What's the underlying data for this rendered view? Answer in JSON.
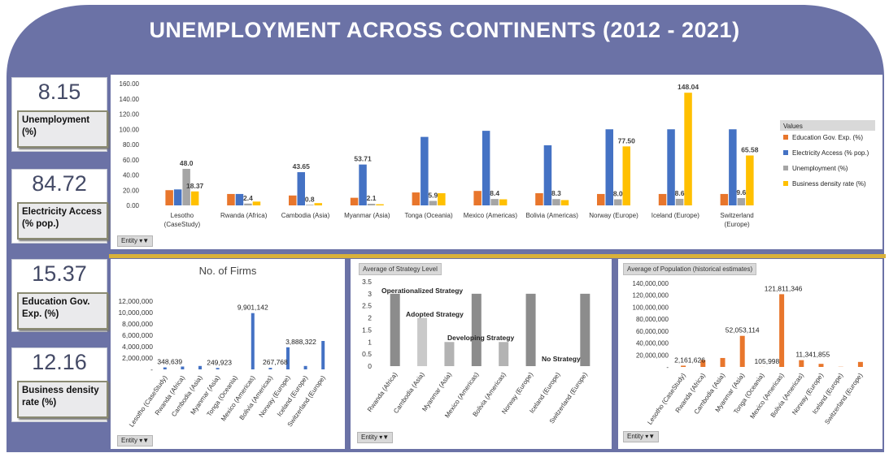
{
  "title": "UNEMPLOYMENT ACROSS CONTINENTS  (2012 - 2021)",
  "colors": {
    "frame": "#6b72a6",
    "divider": "#d9b13a",
    "education": "#e8762c",
    "electricity": "#4472c4",
    "unemployment": "#a5a5a5",
    "business": "#ffc000",
    "strategy": "#8c8c8c",
    "population": "#e8762c",
    "firms": "#4472c4"
  },
  "kpis": [
    {
      "value": "8.15",
      "label": "Unemployment (%)"
    },
    {
      "value": "84.72",
      "label": "Electricity Access (% pop.)"
    },
    {
      "value": "15.37",
      "label": "Education Gov. Exp. (%)"
    },
    {
      "value": "12.16",
      "label": "Business density rate (%)"
    }
  ],
  "filter_label": "Entity",
  "legend": {
    "title": "Values",
    "items": [
      "Education Gov. Exp. (%)",
      "Electricity Access (% pop.)",
      "Unemployment (%)",
      "Business density rate (%)"
    ]
  },
  "chart_data": [
    {
      "id": "main",
      "type": "bar",
      "categories": [
        "Lesotho (CaseStudy)",
        "Rwanda (Africa)",
        "Cambodia (Asia)",
        "Myanmar (Asia)",
        "Tonga (Oceania)",
        "Mexico (Americas)",
        "Bolivia (Americas)",
        "Norway (Europe)",
        "Iceland (Europe)",
        "Switzerland (Europe)"
      ],
      "category_lines": [
        [
          "Lesotho",
          "(CaseStudy)"
        ],
        [
          "Rwanda (Africa)"
        ],
        [
          "Cambodia (Asia)"
        ],
        [
          "Myanmar (Asia)"
        ],
        [
          "Tonga (Oceania)"
        ],
        [
          "Mexico (Americas)"
        ],
        [
          "Bolivia (Americas)"
        ],
        [
          "Norway (Europe)"
        ],
        [
          "Iceland (Europe)"
        ],
        [
          "Switzerland",
          "(Europe)"
        ]
      ],
      "series": [
        {
          "name": "Education Gov. Exp. (%)",
          "values": [
            20,
            15,
            13,
            10,
            17,
            19,
            16,
            15,
            15,
            15
          ]
        },
        {
          "name": "Electricity Access (% pop.)",
          "values": [
            21,
            15,
            43.65,
            53.71,
            90,
            98,
            79,
            100,
            100,
            100
          ]
        },
        {
          "name": "Unemployment (%)",
          "values": [
            48.0,
            2.4,
            0.8,
            2.1,
            5.9,
            8.4,
            8.3,
            8.0,
            8.6,
            9.6
          ]
        },
        {
          "name": "Business density rate (%)",
          "values": [
            18.37,
            5,
            3,
            1.5,
            16,
            8,
            7,
            77.5,
            148.04,
            65.58
          ]
        }
      ],
      "data_labels": [
        {
          "category": 0,
          "series": 2,
          "text": "48.0"
        },
        {
          "category": 0,
          "series": 3,
          "text": "18.37"
        },
        {
          "category": 1,
          "series": 2,
          "text": "2.4"
        },
        {
          "category": 2,
          "series": 1,
          "text": "43.65"
        },
        {
          "category": 2,
          "series": 2,
          "text": "0.8"
        },
        {
          "category": 3,
          "series": 1,
          "text": "53.71"
        },
        {
          "category": 3,
          "series": 2,
          "text": "2.1"
        },
        {
          "category": 4,
          "series": 2,
          "text": "5.9"
        },
        {
          "category": 5,
          "series": 2,
          "text": "8.4"
        },
        {
          "category": 6,
          "series": 2,
          "text": "8.3"
        },
        {
          "category": 7,
          "series": 2,
          "text": "8.0"
        },
        {
          "category": 7,
          "series": 3,
          "text": "77.50"
        },
        {
          "category": 8,
          "series": 2,
          "text": "8.6"
        },
        {
          "category": 8,
          "series": 3,
          "text": "148.04"
        },
        {
          "category": 9,
          "series": 2,
          "text": "9.6"
        },
        {
          "category": 9,
          "series": 3,
          "text": "65.58"
        }
      ],
      "ylim": [
        0,
        160
      ],
      "yticks": [
        "0.00",
        "20.00",
        "40.00",
        "60.00",
        "80.00",
        "100.00",
        "120.00",
        "140.00",
        "160.00"
      ]
    },
    {
      "id": "firms",
      "type": "bar",
      "title": "No. of Firms",
      "categories": [
        "Lesotho (CaseStudy)",
        "Rwanda (Africa)",
        "Cambodia (Asia)",
        "Myanmar (Asia)",
        "Tonga (Oceania)",
        "Mexico (Americas)",
        "Bolivia (Americas)",
        "Norway (Europe)",
        "Iceland (Europe)",
        "Switzerland (Europe)"
      ],
      "values": [
        348639,
        500000,
        600000,
        249923,
        0,
        9901142,
        267768,
        3888322,
        600000,
        5000000
      ],
      "data_labels": [
        {
          "index": 0,
          "text": "348,639"
        },
        {
          "index": 3,
          "text": "249,923"
        },
        {
          "index": 5,
          "text": "9,901,142"
        },
        {
          "index": 6,
          "text": "267,768"
        },
        {
          "index": 7,
          "text": "3,888,322"
        }
      ],
      "ylim": [
        0,
        12000000
      ],
      "yticks": [
        "-",
        "2,000,000",
        "4,000,000",
        "6,000,000",
        "8,000,000",
        "10,000,000",
        "12,000,000"
      ]
    },
    {
      "id": "strategy",
      "type": "bar",
      "title": "Average of Strategy Level",
      "categories": [
        "Rwanda (Africa)",
        "Cambodia (Asia)",
        "Myanmar (Asia)",
        "Mexico (Americas)",
        "Bolivia (Americas)",
        "Norway (Europe)",
        "Iceland (Europe)",
        "Switzerland (Europe)"
      ],
      "values": [
        3,
        2,
        1,
        3,
        1,
        3,
        0,
        3
      ],
      "annotations": [
        "Operationalized Strategy",
        "Adopted Strategy",
        "Developing Strategy",
        "No Strategy"
      ],
      "ylim": [
        0,
        3.5
      ],
      "yticks": [
        "0",
        "0.5",
        "1",
        "1.5",
        "2",
        "2.5",
        "3",
        "3.5"
      ]
    },
    {
      "id": "population",
      "type": "bar",
      "title": "Average of Population (historical estimates)",
      "categories": [
        "Lesotho (CaseStudy)",
        "Rwanda (Africa)",
        "Cambodia (Asia)",
        "Myanmar (Asia)",
        "Tonga (Oceania)",
        "Mexico (Americas)",
        "Bolivia (Americas)",
        "Norway (Europe)",
        "Iceland (Europe)",
        "Switzerland (Europe)"
      ],
      "values": [
        2161626,
        11500000,
        15000000,
        52053114,
        105998,
        121811346,
        11341855,
        5200000,
        330000,
        8400000
      ],
      "data_labels": [
        {
          "index": 0,
          "text": "2,161,626"
        },
        {
          "index": 3,
          "text": "52,053,114"
        },
        {
          "index": 4,
          "text": "105,998"
        },
        {
          "index": 5,
          "text": "121,811,346"
        },
        {
          "index": 6,
          "text": "11,341,855"
        }
      ],
      "ylim": [
        0,
        140000000
      ],
      "yticks": [
        "-",
        "20,000,000",
        "40,000,000",
        "60,000,000",
        "80,000,000",
        "100,000,000",
        "120,000,000",
        "140,000,000"
      ]
    }
  ]
}
